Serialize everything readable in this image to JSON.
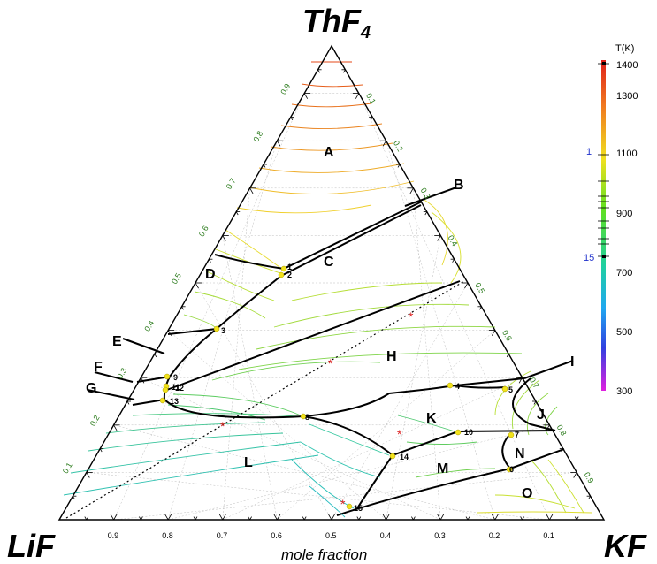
{
  "corners": {
    "top_main": "ThF",
    "top_sub": "4",
    "left": "LiF",
    "right": "KF"
  },
  "xlabel": "mole fraction",
  "bottom_ticks": [
    "0.9",
    "0.8",
    "0.7",
    "0.6",
    "0.5",
    "0.4",
    "0.3",
    "0.2",
    "0.1"
  ],
  "left_ticks": [
    "0.9",
    "0.8",
    "0.7",
    "0.6",
    "0.5",
    "0.4",
    "0.3",
    "0.2",
    "0.1"
  ],
  "right_ticks": [
    "0.1",
    "0.2",
    "0.3",
    "0.4",
    "0.5",
    "0.6",
    "0.7",
    "0.8",
    "0.9"
  ],
  "region_labels": {
    "A": "A",
    "B": "B",
    "C": "C",
    "D": "D",
    "E": "E",
    "F": "F",
    "G": "G",
    "H": "H",
    "I": "I",
    "J": "J",
    "K": "K",
    "L": "L",
    "M": "M",
    "N": "N",
    "O": "O"
  },
  "points": [
    "1",
    "2",
    "3",
    "4",
    "5",
    "6",
    "7",
    "8",
    "9",
    "10",
    "11",
    "12",
    "13",
    "14",
    "15"
  ],
  "colorbar": {
    "title": "T(K)",
    "ticks": [
      "1400",
      "1300",
      "1100",
      "900",
      "700",
      "500",
      "300"
    ],
    "marker_1": "1",
    "marker_15": "15"
  }
}
